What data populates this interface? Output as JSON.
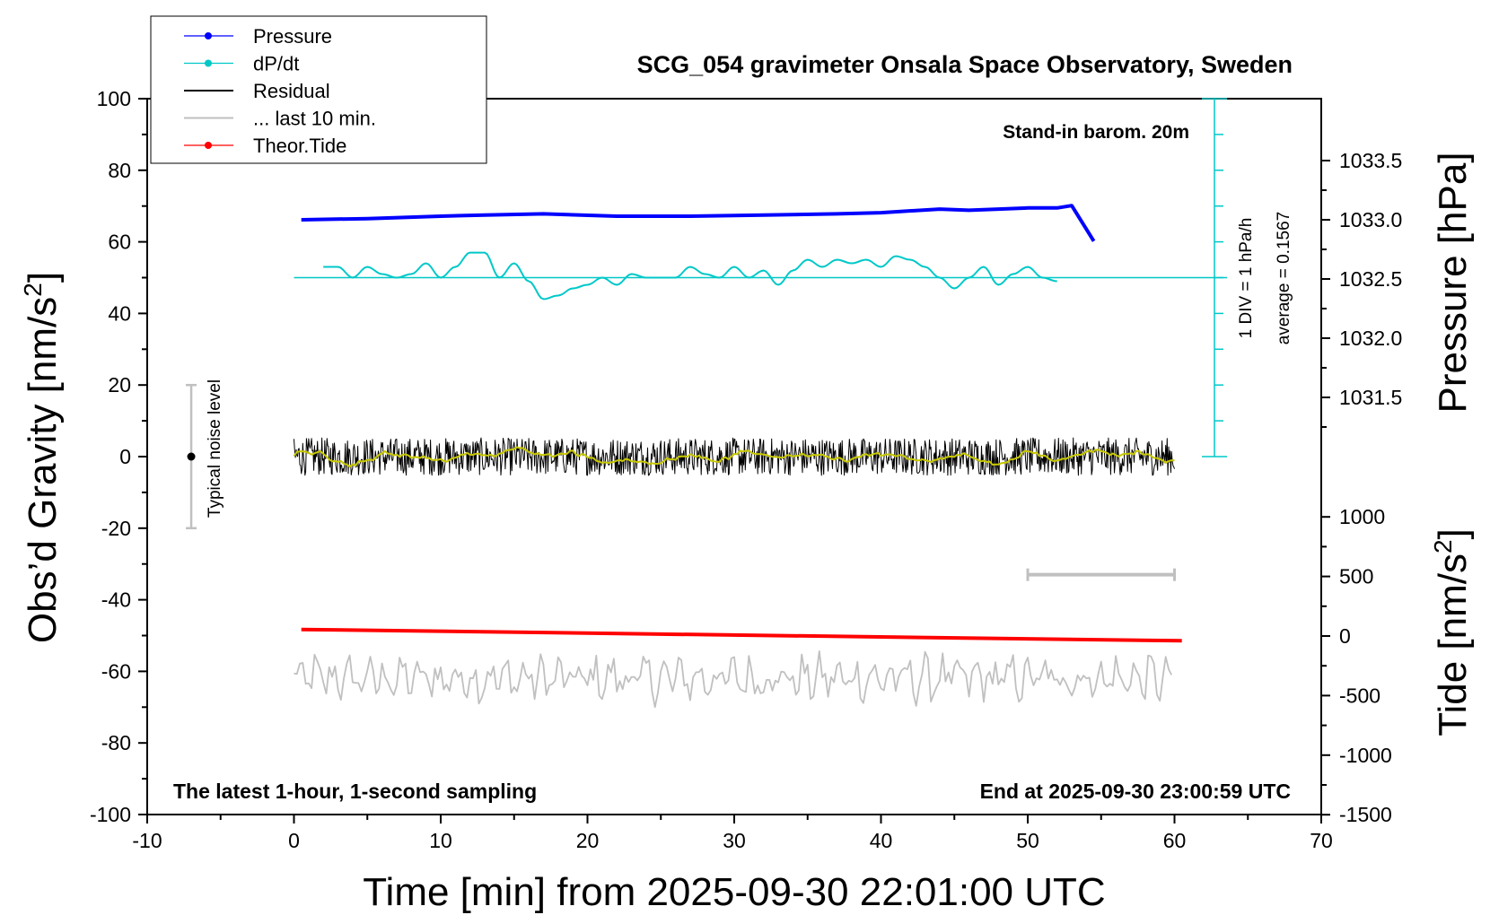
{
  "chart_data": {
    "type": "line",
    "title": "SCG_054 gravimeter Onsala Space Observatory, Sweden",
    "xlabel": "Time [min] from 2025-09-30 22:01:00 UTC",
    "ylabel": "Obs’d Gravity [nm/s",
    "ylabel_sup": "2",
    "ylabel_close": "]",
    "y2label": "Pressure [hPa]",
    "y3label": "Tide [nm/s",
    "y3label_sup": "2",
    "y3label_close": "]",
    "xlim": [
      -10,
      70
    ],
    "ylim": [
      -100,
      100
    ],
    "x_ticks": [
      "-10",
      "0",
      "10",
      "20",
      "30",
      "40",
      "50",
      "60",
      "70"
    ],
    "y_ticks": [
      "100",
      "80",
      "60",
      "40",
      "20",
      "0",
      "-20",
      "-40",
      "-60",
      "-80",
      "-100"
    ],
    "pressure_ticks": [
      "1033.5",
      "1033.0",
      "1032.5",
      "1032.0",
      "1031.5"
    ],
    "tide_ticks": [
      "1000",
      "500",
      "0",
      "-500",
      "-1000",
      "-1500"
    ],
    "annotations": {
      "barometer": "Stand-in barom. 20m",
      "div": "1 DIV = 1 hPa/h",
      "average": "average = 0.1567",
      "noise": "Typical noise level",
      "bottom_left": "The latest 1-hour, 1-second sampling",
      "bottom_right": "End at 2025-09-30 23:00:59 UTC"
    },
    "legend_position": "top-left",
    "legend": [
      {
        "name": "Pressure",
        "color": "#0000ff",
        "marker": true
      },
      {
        "name": "dP/dt",
        "color": "#00c8c8",
        "marker": true
      },
      {
        "name": "Residual",
        "color": "#000000",
        "marker": false
      },
      {
        "name": "... last 10 min.",
        "color": "#c0c0c0",
        "marker": false
      },
      {
        "name": "Theor.Tide",
        "color": "#ff0000",
        "marker": true
      }
    ],
    "series": [
      {
        "name": "Pressure",
        "axis": "pressure",
        "x": [
          0.5,
          5,
          10,
          13,
          17,
          22,
          27,
          32,
          37,
          40,
          44,
          46,
          48,
          50,
          52,
          53,
          54.5
        ],
        "values": [
          1033.0,
          1033.01,
          1033.03,
          1033.04,
          1033.05,
          1033.03,
          1033.03,
          1033.04,
          1033.05,
          1033.06,
          1033.09,
          1033.08,
          1033.09,
          1033.1,
          1033.1,
          1033.12,
          1032.82
        ]
      },
      {
        "name": "dP/dt",
        "axis": "gravity",
        "x": [
          2,
          3,
          4,
          5,
          6,
          7,
          8,
          9,
          10,
          11,
          12,
          13,
          14,
          15,
          16,
          17,
          18,
          19,
          20,
          21,
          22,
          23,
          24,
          25,
          26,
          27,
          28,
          29,
          30,
          31,
          32,
          33,
          34,
          35,
          36,
          37,
          38,
          39,
          40,
          41,
          42,
          43,
          44,
          45,
          46,
          47,
          48,
          49,
          50,
          51,
          52
        ],
        "values": [
          53,
          53,
          50,
          53,
          51,
          50,
          51,
          54,
          50,
          53,
          57,
          57,
          50,
          54,
          49,
          44,
          45,
          47,
          48,
          50,
          48,
          51,
          50,
          50,
          50,
          53,
          51,
          50,
          53,
          50,
          52,
          48,
          52,
          55,
          53,
          55,
          54,
          55,
          53,
          56,
          55,
          53,
          50,
          47,
          50,
          53,
          48,
          51,
          53,
          50,
          49
        ]
      },
      {
        "name": "Residual",
        "axis": "gravity",
        "x_range": [
          0,
          60
        ],
        "mean": 0,
        "amplitude": 7
      },
      {
        "name": "... last 10 min.",
        "axis": "gravity",
        "x_range": [
          0,
          60
        ],
        "mean": -62,
        "amplitude": 7
      },
      {
        "name": "Theor.Tide",
        "axis": "tide",
        "x": [
          0.5,
          60.5
        ],
        "values": [
          55,
          -40
        ]
      }
    ],
    "pressure_axis_range": [
      1031.0,
      1034.0
    ],
    "tide_axis_range": [
      -1500,
      1000
    ],
    "noise_bar": {
      "x": -7,
      "ymin": -20,
      "ymax": 20
    },
    "scale_bar": {
      "x1": 50,
      "x2": 60,
      "y": -33
    },
    "dpdt_baseline": 50,
    "grid": false,
    "colors": {
      "residual_smooth": "#c8c800"
    }
  }
}
